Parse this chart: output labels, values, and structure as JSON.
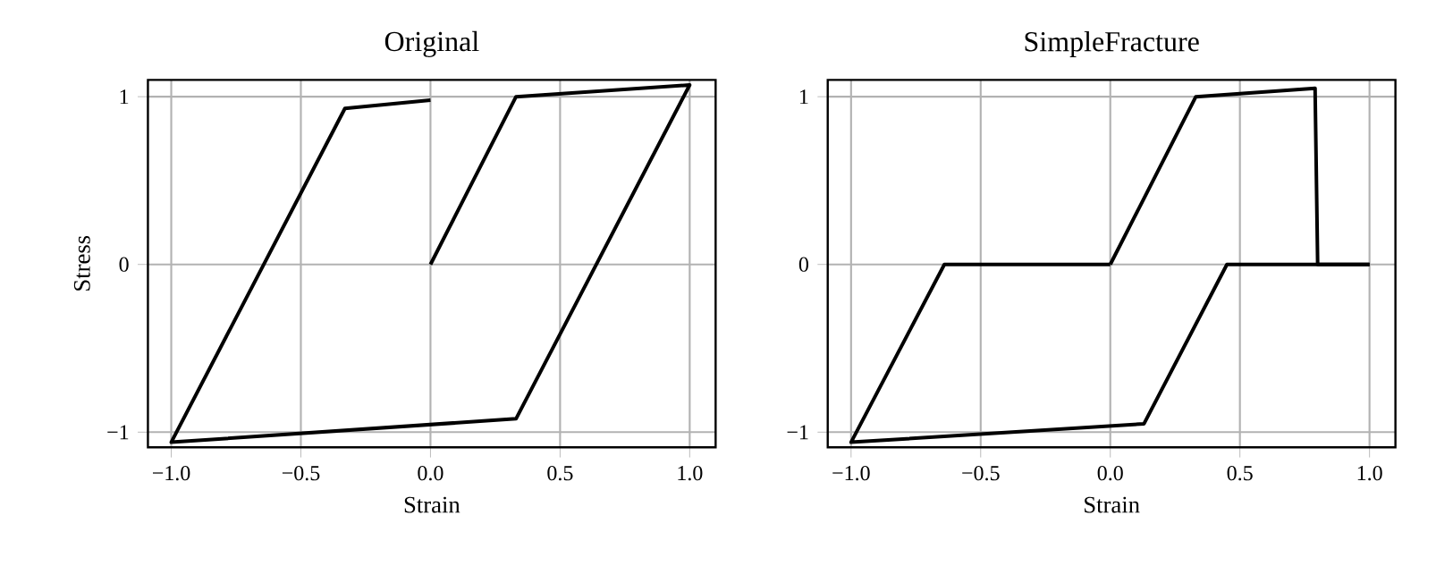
{
  "chart_data": [
    {
      "type": "line",
      "title": "Original",
      "xlabel": "Strain",
      "ylabel": "Stress",
      "grid": true,
      "xlim": [
        -1.09,
        1.1
      ],
      "ylim": [
        -1.09,
        1.1
      ],
      "xticks": [
        {
          "value": -1,
          "label": "−1.0"
        },
        {
          "value": -0.5,
          "label": "−0.5"
        },
        {
          "value": 0,
          "label": "0.0"
        },
        {
          "value": 0.5,
          "label": "0.5"
        },
        {
          "value": 1,
          "label": "1.0"
        }
      ],
      "yticks": [
        {
          "value": -1,
          "label": "−1"
        },
        0,
        1
      ],
      "series": [
        {
          "color": "#000000",
          "x": [
            0,
            0.33,
            1.0,
            0.33,
            -1.0,
            -0.33,
            0.0
          ],
          "values": [
            0,
            1.0,
            1.07,
            -0.92,
            -1.06,
            0.93,
            0.98
          ]
        }
      ]
    },
    {
      "type": "line",
      "title": "SimpleFracture",
      "xlabel": "Strain",
      "grid": true,
      "xlim": [
        -1.09,
        1.1
      ],
      "ylim": [
        -1.09,
        1.1
      ],
      "xticks": [
        {
          "value": -1,
          "label": "−1.0"
        },
        {
          "value": -0.5,
          "label": "−0.5"
        },
        {
          "value": 0,
          "label": "0.0"
        },
        {
          "value": 0.5,
          "label": "0.5"
        },
        {
          "value": 1,
          "label": "1.0"
        }
      ],
      "yticks": [
        {
          "value": -1,
          "label": "−1"
        },
        0,
        1
      ],
      "series": [
        {
          "color": "#000000",
          "x": [
            0,
            0.33,
            0.79,
            0.8,
            1.0
          ],
          "values": [
            0,
            1.0,
            1.05,
            0,
            0
          ]
        },
        {
          "color": "#000000",
          "x": [
            1.0,
            0.45,
            0.13,
            -1.0,
            -0.64,
            0.0
          ],
          "values": [
            0,
            0,
            -0.95,
            -1.06,
            0,
            0
          ]
        }
      ]
    }
  ]
}
